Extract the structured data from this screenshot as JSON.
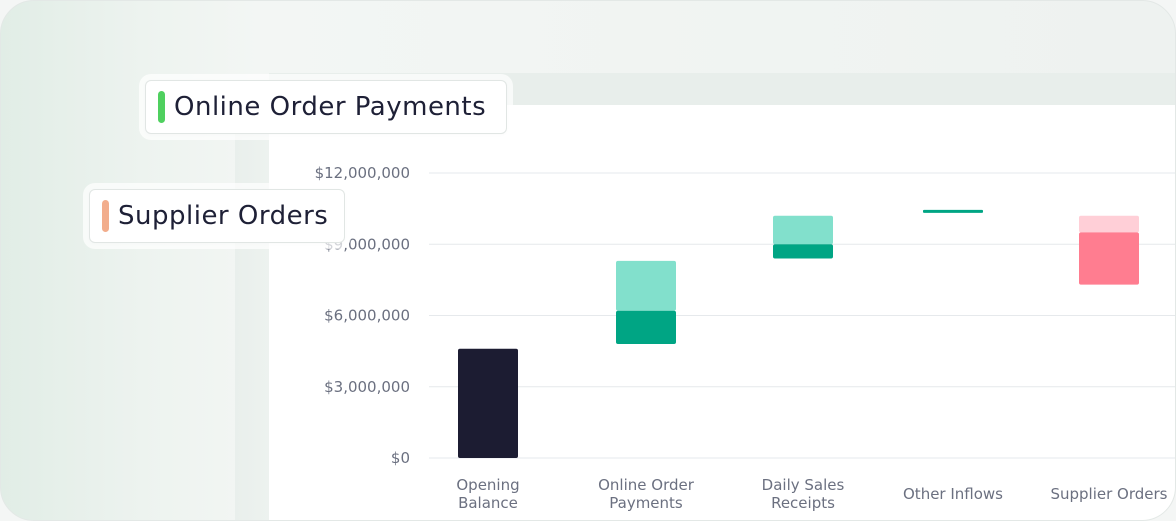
{
  "legend": [
    {
      "label": "Online Order Payments",
      "color": "#4fd05f"
    },
    {
      "label": "Supplier Orders",
      "color": "#f2ad8c"
    }
  ],
  "colors": {
    "opening": "#1c1c32",
    "increase_light": "#82e0cc",
    "increase_dark": "#00a584",
    "decrease_light": "#ffcfd7",
    "decrease_dark": "#ff7d90",
    "grid": "#e6e9ec",
    "tick_text": "#6b7080"
  },
  "chart_data": {
    "type": "bar",
    "subtype": "waterfall",
    "categories": [
      "Opening Balance",
      "Online Order Payments",
      "Daily Sales Receipts",
      "Other Inflows",
      "Supplier Orders"
    ],
    "category_label_lines": [
      [
        "Opening",
        "Balance"
      ],
      [
        "Online Order",
        "Payments"
      ],
      [
        "Daily Sales",
        "Receipts"
      ],
      [
        "Other Inflows"
      ],
      [
        "Supplier Orders"
      ]
    ],
    "ylim": [
      0,
      12000000
    ],
    "yticks": [
      0,
      3000000,
      6000000,
      9000000,
      12000000
    ],
    "ytick_labels": [
      "$0",
      "$3,000,000",
      "$6,000,000",
      "$9,000,000",
      "$12,000,000"
    ],
    "bars": [
      {
        "category": "Opening Balance",
        "kind": "opening",
        "start": 0,
        "end": 4600000
      },
      {
        "category": "Online Order Payments",
        "kind": "increase",
        "start": 4800000,
        "mid": 6200000,
        "end": 8300000
      },
      {
        "category": "Daily Sales Receipts",
        "kind": "increase",
        "start": 8400000,
        "mid": 9000000,
        "end": 10200000
      },
      {
        "category": "Other Inflows",
        "kind": "increase",
        "start": 10350000,
        "end": 10450000
      },
      {
        "category": "Supplier Orders",
        "kind": "decrease",
        "start": 10200000,
        "mid": 9500000,
        "end": 7300000
      }
    ],
    "xlabel": "",
    "ylabel": "",
    "grid": true
  }
}
